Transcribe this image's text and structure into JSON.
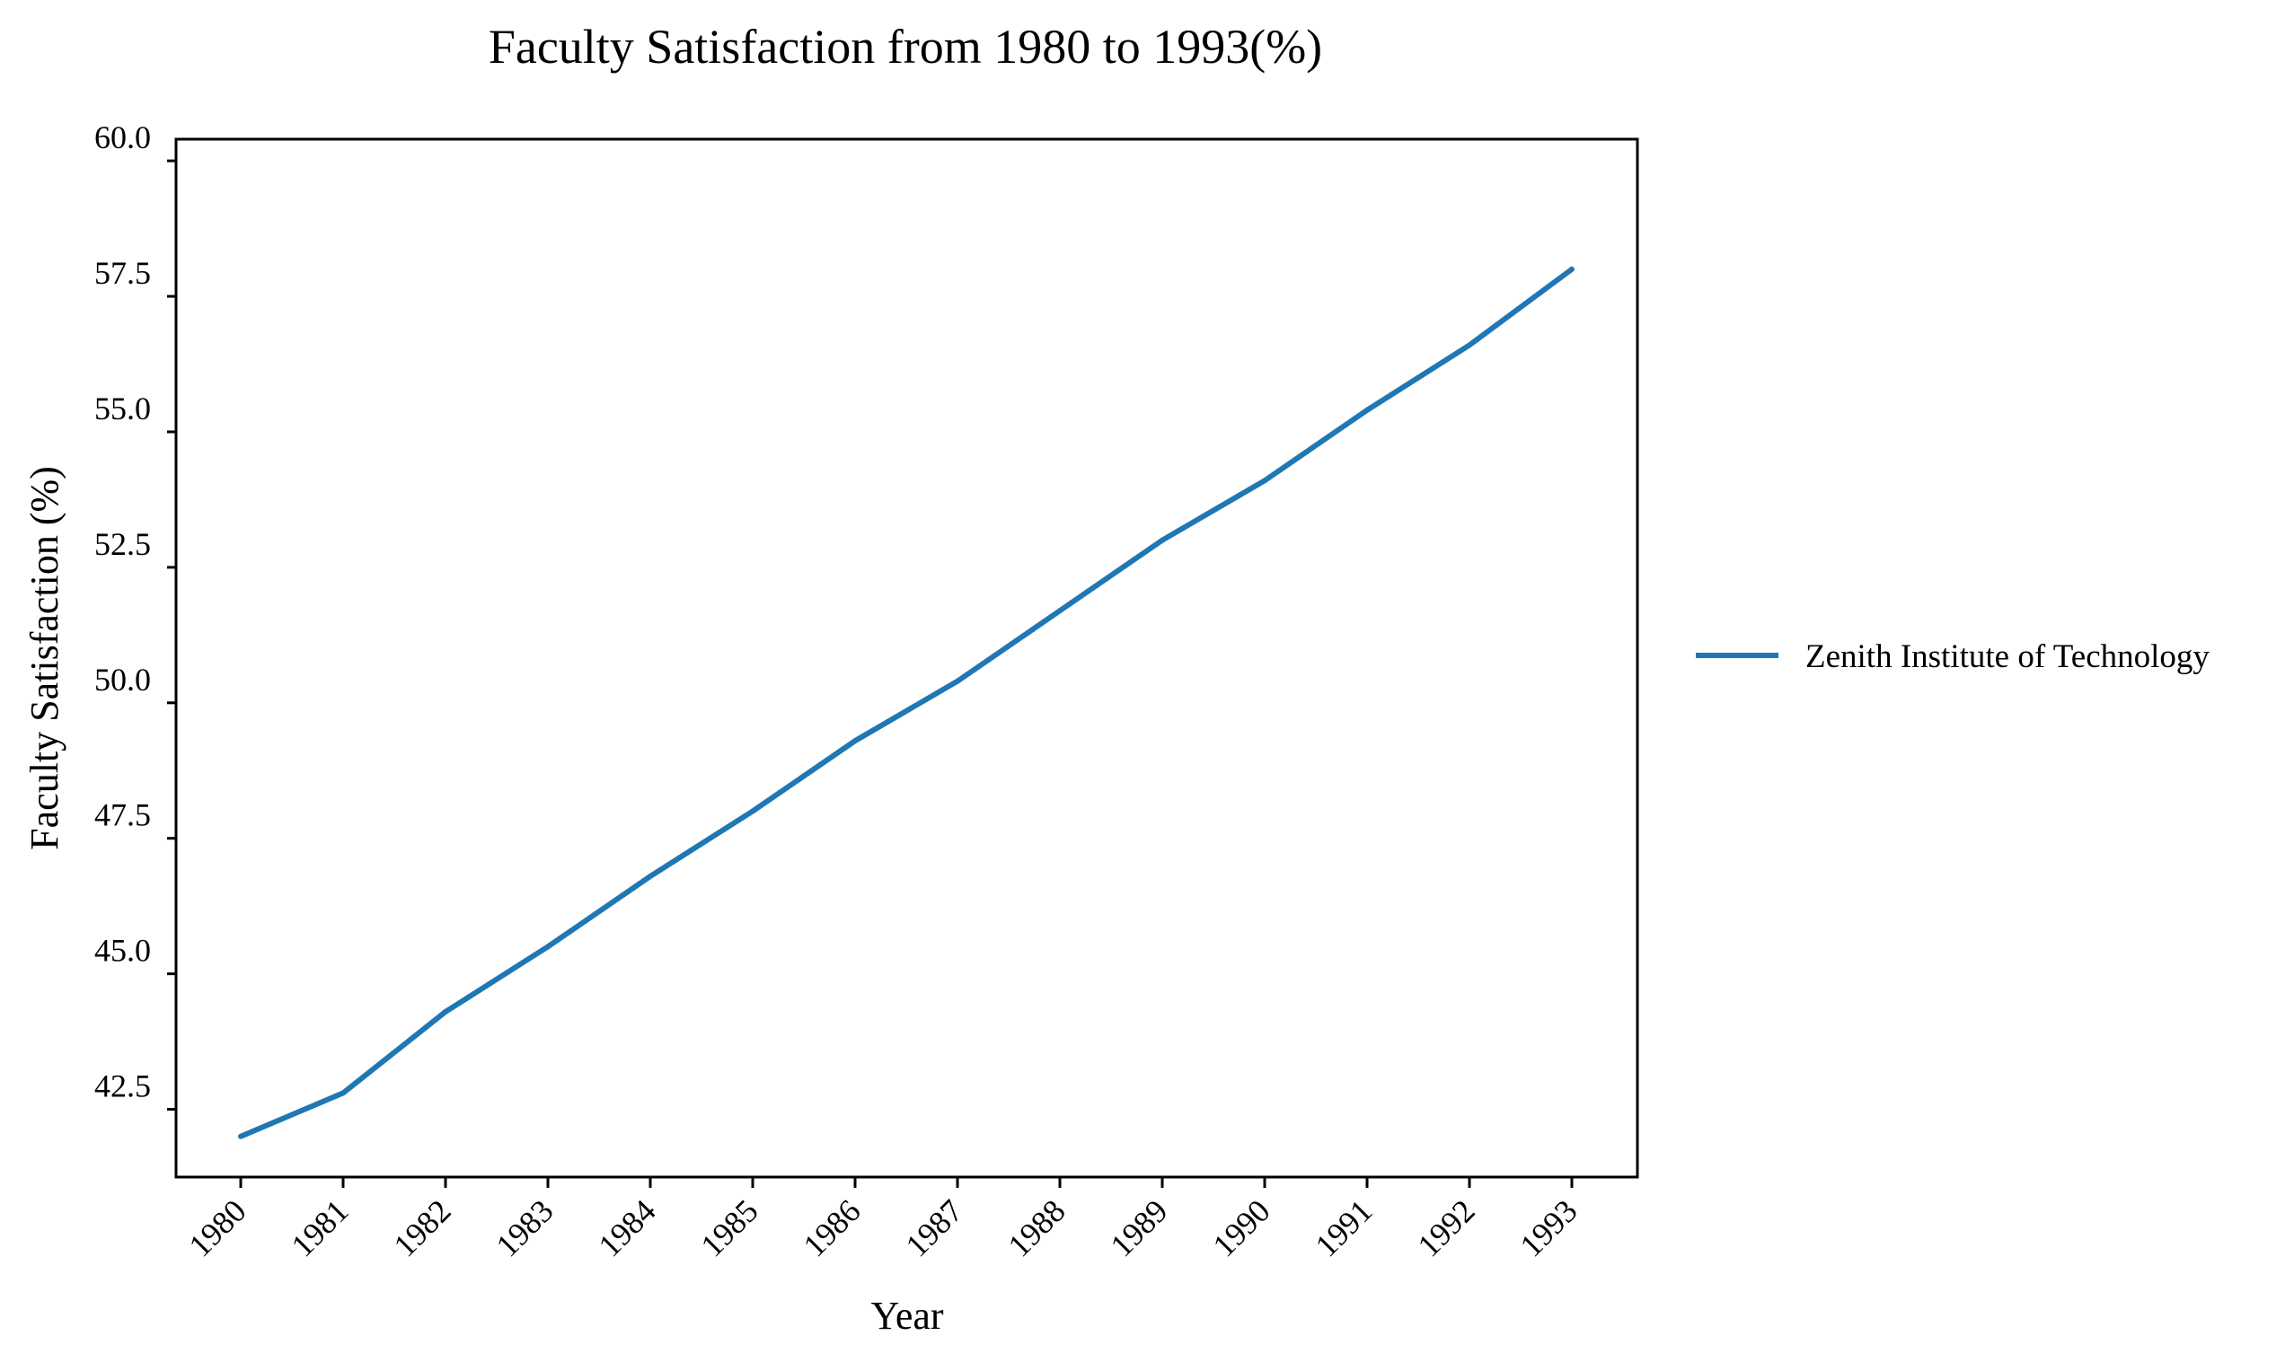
{
  "chart_data": {
    "type": "line",
    "title": "Faculty Satisfaction from 1980 to 1993(%)",
    "xlabel": "Year",
    "ylabel": "Faculty Satisfaction (%)",
    "categories": [
      "1980",
      "1981",
      "1982",
      "1983",
      "1984",
      "1985",
      "1986",
      "1987",
      "1988",
      "1989",
      "1990",
      "1991",
      "1992",
      "1993"
    ],
    "yticks": [
      "42.5",
      "45.0",
      "47.5",
      "50.0",
      "52.5",
      "55.0",
      "57.5",
      "60.0"
    ],
    "ylim": [
      41.25,
      60.4
    ],
    "grid": false,
    "legend_position": "right",
    "series": [
      {
        "name": "Zenith Institute of Technology",
        "color": "#1f77b4",
        "values": [
          42.0,
          42.8,
          44.3,
          45.5,
          46.8,
          48.0,
          49.3,
          50.4,
          51.7,
          53.0,
          54.1,
          55.4,
          56.6,
          58.0
        ]
      }
    ]
  }
}
